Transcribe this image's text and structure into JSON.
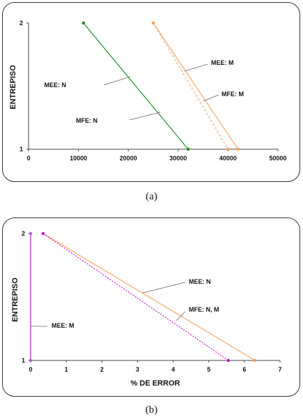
{
  "chart_data": [
    {
      "type": "line",
      "ylabel": "ENTREPISO",
      "xlabel": "",
      "xlim": [
        0,
        50000
      ],
      "ylim": [
        1,
        2
      ],
      "x_ticks": [
        "0",
        "10000",
        "20000",
        "30000",
        "40000",
        "50000"
      ],
      "y_ticks": [
        "1",
        "2"
      ],
      "series": [
        {
          "id": "mee-n",
          "color": "#228B22",
          "dash": "none",
          "points": [
            {
              "x": 11000,
              "y": 2
            },
            {
              "x": 32000,
              "y": 1
            }
          ]
        },
        {
          "id": "mfe-n",
          "color": "#228B22",
          "dash": "2,2",
          "points": [
            {
              "x": 11000,
              "y": 2
            },
            {
              "x": 32000,
              "y": 1
            }
          ]
        },
        {
          "id": "mee-m",
          "color": "#F5A15A",
          "dash": "none",
          "points": [
            {
              "x": 25000,
              "y": 2
            },
            {
              "x": 42000,
              "y": 1
            }
          ]
        },
        {
          "id": "mfe-m",
          "color": "#F5A15A",
          "dash": "3,3",
          "points": [
            {
              "x": 25000,
              "y": 2
            },
            {
              "x": 40000,
              "y": 1
            }
          ]
        }
      ],
      "annotations": [
        {
          "text": "MEE:  N",
          "target": "mee-n"
        },
        {
          "text": "MFE:  N",
          "target": "mfe-n"
        },
        {
          "text": "MEE:  M",
          "target": "mee-m"
        },
        {
          "text": "MFE:  M",
          "target": "mfe-m"
        }
      ],
      "caption": "(a)"
    },
    {
      "type": "line",
      "ylabel": "ENTREPISO",
      "xlabel": "% DE ERROR",
      "xlim": [
        0,
        7
      ],
      "ylim": [
        1,
        2
      ],
      "x_ticks": [
        "0",
        "1",
        "2",
        "3",
        "4",
        "5",
        "6",
        "7"
      ],
      "y_ticks": [
        "1",
        "2"
      ],
      "series": [
        {
          "id": "mee-n",
          "color": "#F5A15A",
          "dash": "none",
          "points": [
            {
              "x": 0.35,
              "y": 2
            },
            {
              "x": 6.3,
              "y": 1
            }
          ]
        },
        {
          "id": "mfe-nm",
          "color": "#CC00CC",
          "dash": "2,2",
          "points": [
            {
              "x": 0.35,
              "y": 2
            },
            {
              "x": 5.55,
              "y": 1
            }
          ]
        },
        {
          "id": "mee-m",
          "color": "#B05CC8",
          "dash": "none",
          "points": [
            {
              "x": 0.0,
              "y": 2
            },
            {
              "x": 0.0,
              "y": 1
            }
          ]
        }
      ],
      "annotations": [
        {
          "text": "MEE:  N",
          "target": "mee-n"
        },
        {
          "text": "MFE:  N, M",
          "target": "mfe-nm"
        },
        {
          "text": "MEE:  M",
          "target": "mee-m"
        }
      ],
      "caption": "(b)"
    }
  ]
}
